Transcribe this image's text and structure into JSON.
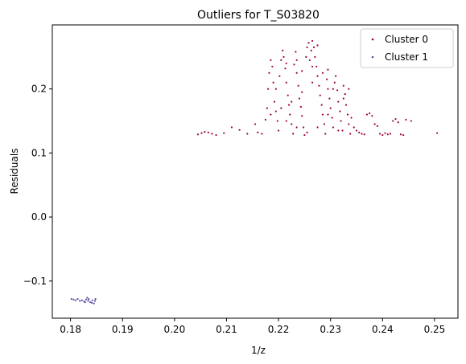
{
  "chart_data": {
    "type": "scatter",
    "title": "Outliers for T_S03820",
    "xlabel": "1/z",
    "ylabel": "Residuals",
    "xlim": [
      0.1765,
      0.2545
    ],
    "ylim": [
      -0.158,
      0.3
    ],
    "xticks": [
      0.18,
      0.19,
      0.2,
      0.21,
      0.22,
      0.23,
      0.24,
      0.25
    ],
    "xtick_labels": [
      "0.18",
      "0.19",
      "0.20",
      "0.21",
      "0.22",
      "0.23",
      "0.24",
      "0.25"
    ],
    "yticks": [
      -0.1,
      0.0,
      0.1,
      0.2
    ],
    "ytick_labels": [
      "−0.1",
      "0.0",
      "0.1",
      "0.2"
    ],
    "legend_position": "top-right",
    "series": [
      {
        "name": "Cluster 0",
        "color": "#9e0142",
        "points": [
          [
            0.2045,
            0.129
          ],
          [
            0.2052,
            0.131
          ],
          [
            0.2058,
            0.133
          ],
          [
            0.2065,
            0.132
          ],
          [
            0.2072,
            0.13
          ],
          [
            0.208,
            0.128
          ],
          [
            0.2095,
            0.131
          ],
          [
            0.211,
            0.14
          ],
          [
            0.2125,
            0.136
          ],
          [
            0.214,
            0.13
          ],
          [
            0.2155,
            0.145
          ],
          [
            0.216,
            0.132
          ],
          [
            0.2168,
            0.13
          ],
          [
            0.2175,
            0.152
          ],
          [
            0.2178,
            0.17
          ],
          [
            0.218,
            0.2
          ],
          [
            0.2182,
            0.225
          ],
          [
            0.2185,
            0.245
          ],
          [
            0.2188,
            0.235
          ],
          [
            0.219,
            0.21
          ],
          [
            0.2192,
            0.18
          ],
          [
            0.2195,
            0.165
          ],
          [
            0.2198,
            0.15
          ],
          [
            0.22,
            0.135
          ],
          [
            0.2202,
            0.22
          ],
          [
            0.2205,
            0.245
          ],
          [
            0.2208,
            0.26
          ],
          [
            0.221,
            0.25
          ],
          [
            0.2213,
            0.232
          ],
          [
            0.2215,
            0.21
          ],
          [
            0.2218,
            0.19
          ],
          [
            0.222,
            0.175
          ],
          [
            0.2222,
            0.16
          ],
          [
            0.2225,
            0.145
          ],
          [
            0.2228,
            0.13
          ],
          [
            0.223,
            0.238
          ],
          [
            0.2233,
            0.258
          ],
          [
            0.2235,
            0.225
          ],
          [
            0.2238,
            0.205
          ],
          [
            0.224,
            0.185
          ],
          [
            0.2243,
            0.172
          ],
          [
            0.2245,
            0.158
          ],
          [
            0.2248,
            0.14
          ],
          [
            0.225,
            0.128
          ],
          [
            0.2253,
            0.25
          ],
          [
            0.2255,
            0.265
          ],
          [
            0.2258,
            0.272
          ],
          [
            0.226,
            0.245
          ],
          [
            0.2263,
            0.26
          ],
          [
            0.2265,
            0.275
          ],
          [
            0.2268,
            0.265
          ],
          [
            0.227,
            0.25
          ],
          [
            0.2273,
            0.235
          ],
          [
            0.2275,
            0.22
          ],
          [
            0.2278,
            0.205
          ],
          [
            0.228,
            0.19
          ],
          [
            0.2283,
            0.175
          ],
          [
            0.2285,
            0.16
          ],
          [
            0.2288,
            0.145
          ],
          [
            0.229,
            0.13
          ],
          [
            0.2293,
            0.215
          ],
          [
            0.2295,
            0.2
          ],
          [
            0.2298,
            0.185
          ],
          [
            0.23,
            0.17
          ],
          [
            0.2303,
            0.155
          ],
          [
            0.2305,
            0.14
          ],
          [
            0.2308,
            0.21
          ],
          [
            0.231,
            0.22
          ],
          [
            0.2313,
            0.198
          ],
          [
            0.2315,
            0.18
          ],
          [
            0.2318,
            0.165
          ],
          [
            0.232,
            0.15
          ],
          [
            0.2323,
            0.135
          ],
          [
            0.2325,
            0.205
          ],
          [
            0.2328,
            0.192
          ],
          [
            0.233,
            0.175
          ],
          [
            0.2333,
            0.16
          ],
          [
            0.2335,
            0.145
          ],
          [
            0.2338,
            0.13
          ],
          [
            0.234,
            0.155
          ],
          [
            0.2345,
            0.14
          ],
          [
            0.235,
            0.135
          ],
          [
            0.2355,
            0.132
          ],
          [
            0.236,
            0.13
          ],
          [
            0.2365,
            0.129
          ],
          [
            0.237,
            0.16
          ],
          [
            0.2375,
            0.162
          ],
          [
            0.238,
            0.158
          ],
          [
            0.2385,
            0.145
          ],
          [
            0.239,
            0.142
          ],
          [
            0.2395,
            0.13
          ],
          [
            0.24,
            0.128
          ],
          [
            0.2405,
            0.131
          ],
          [
            0.241,
            0.129
          ],
          [
            0.2415,
            0.13
          ],
          [
            0.242,
            0.15
          ],
          [
            0.2425,
            0.153
          ],
          [
            0.243,
            0.148
          ],
          [
            0.2435,
            0.129
          ],
          [
            0.244,
            0.128
          ],
          [
            0.2445,
            0.152
          ],
          [
            0.2455,
            0.15
          ],
          [
            0.2505,
            0.131
          ],
          [
            0.2185,
            0.16
          ],
          [
            0.2205,
            0.17
          ],
          [
            0.2225,
            0.18
          ],
          [
            0.2245,
            0.195
          ],
          [
            0.2265,
            0.21
          ],
          [
            0.2285,
            0.225
          ],
          [
            0.2305,
            0.2
          ],
          [
            0.2325,
            0.185
          ],
          [
            0.2215,
            0.24
          ],
          [
            0.2235,
            0.245
          ],
          [
            0.2275,
            0.268
          ],
          [
            0.2295,
            0.23
          ],
          [
            0.2195,
            0.2
          ],
          [
            0.2215,
            0.15
          ],
          [
            0.2235,
            0.14
          ],
          [
            0.2255,
            0.132
          ],
          [
            0.2275,
            0.14
          ],
          [
            0.2295,
            0.16
          ],
          [
            0.2315,
            0.135
          ],
          [
            0.2335,
            0.2
          ],
          [
            0.2245,
            0.228
          ],
          [
            0.2265,
            0.235
          ]
        ]
      },
      {
        "name": "Cluster 1",
        "color": "#5e4fa2",
        "points": [
          [
            0.1802,
            -0.128
          ],
          [
            0.1806,
            -0.129
          ],
          [
            0.181,
            -0.13
          ],
          [
            0.1814,
            -0.128
          ],
          [
            0.1818,
            -0.131
          ],
          [
            0.1822,
            -0.13
          ],
          [
            0.1826,
            -0.132
          ],
          [
            0.183,
            -0.129
          ],
          [
            0.1834,
            -0.131
          ],
          [
            0.1838,
            -0.133
          ],
          [
            0.1842,
            -0.13
          ],
          [
            0.1845,
            -0.135
          ],
          [
            0.1848,
            -0.128
          ],
          [
            0.1835,
            -0.128
          ],
          [
            0.1828,
            -0.133
          ],
          [
            0.1841,
            -0.134
          ],
          [
            0.1832,
            -0.126
          ],
          [
            0.1847,
            -0.131
          ]
        ]
      }
    ]
  }
}
